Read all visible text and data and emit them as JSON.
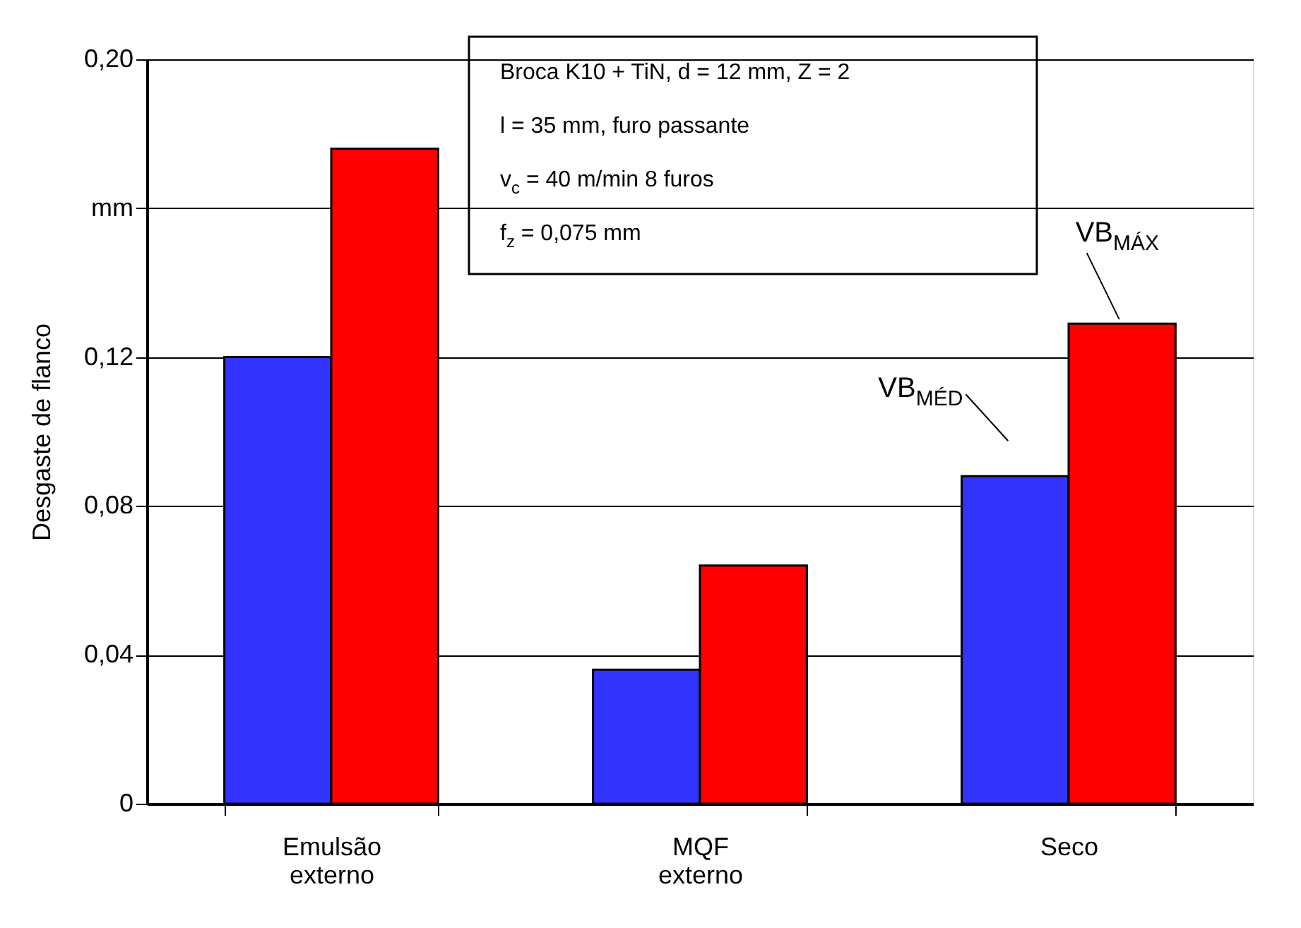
{
  "chart_data": {
    "type": "bar",
    "ylabel": "Desgaste de flanco",
    "categories": [
      "Emulsão\nexterno",
      "MQF\nexterno",
      "Seco"
    ],
    "series": [
      {
        "name": "VB$_{MÉD}$",
        "color": "#3333ff",
        "values": [
          0.12,
          0.036,
          0.088
        ]
      },
      {
        "name": "VB$_{MÁX}$",
        "color": "#ff0000",
        "values": [
          0.176,
          0.064,
          0.129
        ]
      }
    ],
    "ylim": [
      0,
      0.2
    ],
    "yticks": [
      0,
      {
        "value": 0.04,
        "label": "0,04"
      },
      {
        "value": 0.08,
        "label": "0,08"
      },
      {
        "value": 0.12,
        "label": "0,12"
      },
      {
        "value": 0.16,
        "label": "mm"
      },
      {
        "value": 0.2,
        "label": "0,20"
      }
    ],
    "grid": "y",
    "legend": false,
    "annotations": [
      "Broca K10 + TiN, d = 12 mm, Z = 2",
      "l = 35 mm, furo passante",
      "v$_{c}$ = 40 m/min      8 furos",
      "f$_{z}$ = 0,075 mm"
    ]
  }
}
